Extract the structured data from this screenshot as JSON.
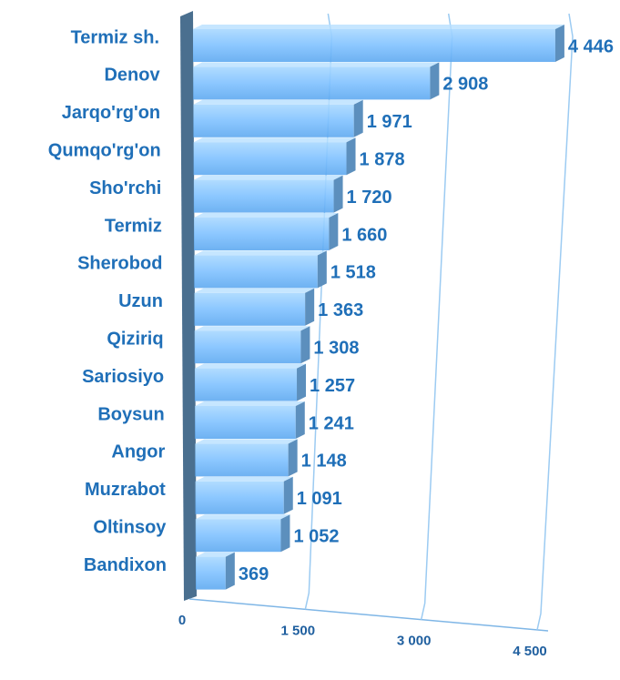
{
  "chart_data": {
    "type": "bar",
    "orientation": "horizontal",
    "categories": [
      "Termiz sh.",
      "Denov",
      "Jarqo'rg'on",
      "Qumqo'rg'on",
      "Sho'rchi",
      "Termiz",
      "Sherobod",
      "Uzun",
      "Qiziriq",
      "Sariosiyo",
      "Boysun",
      "Angor",
      "Muzrabot",
      "Oltinsoy",
      "Bandixon"
    ],
    "values": [
      4446,
      2908,
      1971,
      1878,
      1720,
      1660,
      1518,
      1363,
      1308,
      1257,
      1241,
      1148,
      1091,
      1052,
      369
    ],
    "value_labels": [
      "4 446",
      "2 908",
      "1 971",
      "1 878",
      "1 720",
      "1 660",
      "1 518",
      "1 363",
      "1 308",
      "1 257",
      "1 241",
      "1 148",
      "1 091",
      "1 052",
      "369"
    ],
    "color": "#7fc1ff",
    "xlim": [
      0,
      4500
    ],
    "xticks": [
      0,
      {
        "value": 1500,
        "label": "1 500"
      },
      {
        "value": 3000,
        "label": "3 000"
      },
      {
        "value": 4500,
        "label": "4 500"
      }
    ],
    "grid": true
  }
}
